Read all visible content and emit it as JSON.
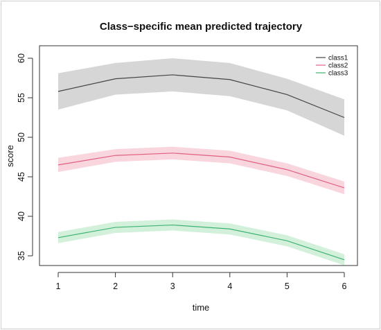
{
  "chart_data": {
    "type": "line",
    "title": "Class−specific mean predicted trajectory",
    "xlabel": "time",
    "ylabel": "score",
    "x": [
      1,
      2,
      3,
      4,
      5,
      6
    ],
    "xlim": [
      1,
      6
    ],
    "ylim": [
      34,
      61
    ],
    "x_ticks": [
      "1",
      "2",
      "3",
      "4",
      "5",
      "6"
    ],
    "y_ticks": [
      35,
      40,
      45,
      50,
      55,
      60
    ],
    "legend_position": "top-right",
    "grid": false,
    "series": [
      {
        "name": "class1",
        "color": "#444444",
        "band_color": "#d6d6d6",
        "values": [
          55.8,
          57.4,
          57.9,
          57.3,
          55.4,
          52.5
        ],
        "lower": [
          53.5,
          55.4,
          55.8,
          55.2,
          53.4,
          50.2
        ],
        "upper": [
          58.1,
          59.4,
          60.0,
          59.4,
          57.4,
          54.8
        ]
      },
      {
        "name": "class2",
        "color": "#e0607e",
        "band_color": "#f9d6de",
        "values": [
          46.5,
          47.7,
          48.0,
          47.5,
          45.9,
          43.6
        ],
        "lower": [
          45.6,
          46.9,
          47.2,
          46.7,
          45.1,
          42.8
        ],
        "upper": [
          47.4,
          48.5,
          48.8,
          48.3,
          46.7,
          44.4
        ]
      },
      {
        "name": "class3",
        "color": "#3cb371",
        "band_color": "#d3f0db",
        "values": [
          37.3,
          38.6,
          38.9,
          38.4,
          36.9,
          34.5
        ],
        "lower": [
          36.6,
          37.9,
          38.2,
          37.7,
          36.2,
          33.8
        ],
        "upper": [
          38.0,
          39.3,
          39.6,
          39.1,
          37.6,
          35.2
        ]
      }
    ]
  }
}
